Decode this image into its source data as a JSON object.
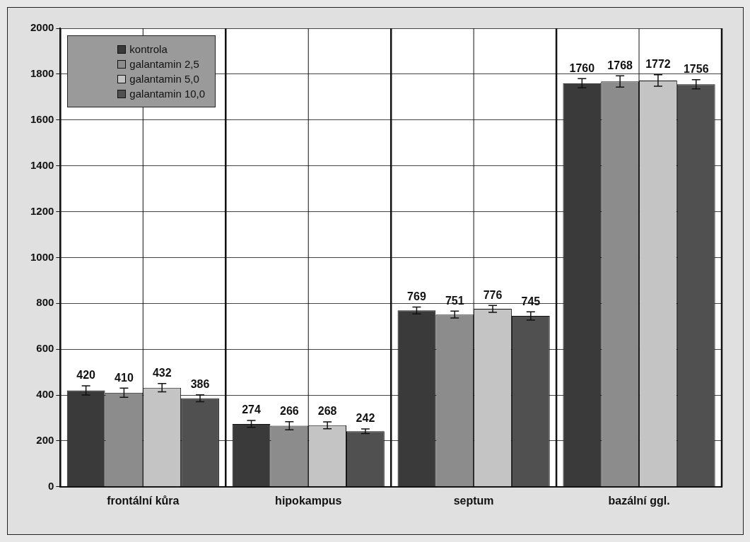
{
  "chart_data": {
    "type": "bar",
    "categories": [
      "frontální kůra",
      "hipokampus",
      "septum",
      "bazální ggl."
    ],
    "series": [
      {
        "name": "kontrola",
        "color": "#3a3a3a",
        "values": [
          420,
          274,
          769,
          1760
        ],
        "errors": [
          20,
          15,
          15,
          20
        ]
      },
      {
        "name": "galantamin 2,5",
        "color": "#8c8c8c",
        "values": [
          410,
          266,
          751,
          1768
        ],
        "errors": [
          20,
          18,
          15,
          25
        ]
      },
      {
        "name": "galantamin 5,0",
        "color": "#c4c4c4",
        "values": [
          432,
          268,
          776,
          1772
        ],
        "errors": [
          18,
          15,
          15,
          25
        ]
      },
      {
        "name": "galantamin 10,0",
        "color": "#505050",
        "values": [
          386,
          242,
          745,
          1756
        ],
        "errors": [
          15,
          10,
          18,
          20
        ]
      }
    ],
    "ylim": [
      0,
      2000
    ],
    "yticks": [
      0,
      200,
      400,
      600,
      800,
      1000,
      1200,
      1400,
      1600,
      1800,
      2000
    ],
    "grid": true,
    "legend": "top left",
    "data_labels": true
  }
}
